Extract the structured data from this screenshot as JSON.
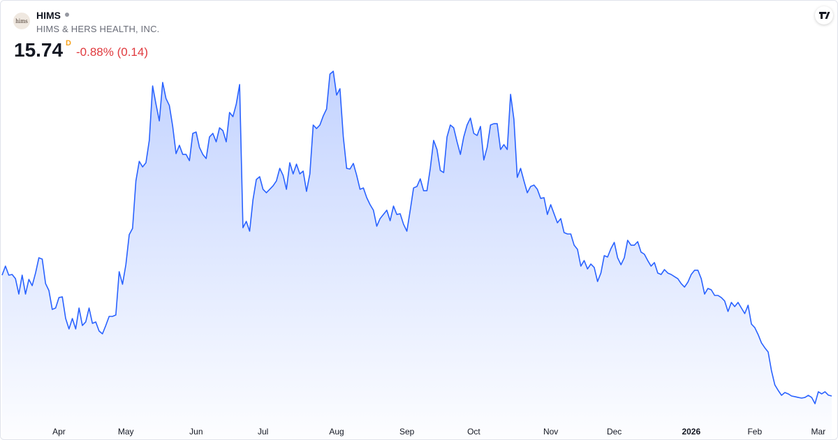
{
  "header": {
    "logo_text": "hims",
    "symbol": "HIMS",
    "company": "HIMS & HERS HEALTH, INC.",
    "price": "15.74",
    "interval": "D",
    "change": "-0.88% (0.14)"
  },
  "chart_data": {
    "type": "area",
    "color": "#2962ff",
    "values": [
      35.24,
      36.7,
      35.24,
      35.35,
      34.67,
      32.19,
      35.24,
      32.19,
      34.56,
      33.55,
      35.58,
      38.05,
      37.83,
      33.88,
      32.76,
      29.71,
      29.94,
      31.63,
      31.74,
      28.25,
      26.56,
      28.25,
      26.56,
      29.94,
      27.12,
      27.69,
      29.94,
      27.46,
      27.69,
      26.22,
      25.77,
      27.12,
      28.59,
      28.59,
      28.81,
      35.8,
      33.77,
      36.93,
      41.77,
      42.79,
      50.45,
      53.61,
      52.71,
      53.38,
      56.99,
      65.78,
      62.85,
      60.14,
      66.34,
      63.75,
      62.62,
      59.24,
      54.85,
      56.2,
      54.73,
      54.73,
      53.72,
      58.12,
      58.34,
      55.86,
      54.73,
      54.06,
      57.55,
      58.12,
      56.76,
      59.02,
      58.57,
      56.76,
      61.5,
      60.82,
      62.85,
      66.0,
      42.9,
      43.92,
      42.34,
      47.41,
      50.68,
      51.13,
      49.1,
      48.54,
      49.1,
      49.66,
      50.45,
      52.48,
      51.35,
      49.1,
      53.38,
      51.58,
      53.16,
      51.58,
      52.03,
      48.76,
      51.58,
      59.47,
      58.9,
      59.47,
      60.93,
      62.06,
      67.69,
      68.15,
      64.31,
      65.33,
      57.55,
      52.48,
      52.37,
      53.27,
      51.35,
      49.1,
      49.32,
      47.75,
      46.62,
      45.72,
      43.13,
      44.37,
      45.04,
      45.72,
      44.03,
      46.39,
      45.04,
      45.15,
      43.46,
      42.34,
      45.72,
      49.32,
      49.55,
      50.79,
      48.87,
      48.87,
      52.48,
      56.99,
      55.52,
      52.14,
      51.8,
      57.55,
      59.47,
      59.02,
      56.76,
      54.73,
      57.55,
      59.47,
      60.59,
      58.12,
      57.78,
      59.24,
      53.83,
      55.86,
      59.47,
      59.69,
      59.69,
      55.52,
      56.31,
      55.52,
      64.43,
      60.37,
      51.02,
      52.48,
      50.45,
      48.54,
      49.55,
      49.78,
      49.1,
      47.63,
      47.75,
      45.04,
      46.62,
      45.15,
      43.69,
      44.37,
      42.11,
      41.89,
      41.89,
      40.08,
      39.41,
      36.7,
      37.6,
      36.25,
      37.04,
      36.48,
      34.22,
      35.58,
      38.39,
      38.17,
      39.52,
      40.53,
      38.05,
      36.93,
      38.05,
      40.87,
      40.08,
      40.08,
      40.65,
      38.96,
      38.62,
      37.6,
      36.7,
      37.27,
      35.58,
      35.35,
      36.14,
      35.58,
      35.35,
      35.01,
      34.67,
      33.88,
      33.32,
      34.11,
      35.35,
      36.03,
      36.03,
      34.67,
      32.19,
      33.1,
      32.87,
      31.97,
      31.97,
      31.63,
      31.07,
      29.38,
      30.84,
      30.17,
      30.84,
      29.94,
      29.04,
      30.39,
      27.35,
      26.78,
      25.66,
      24.31,
      23.52,
      22.84,
      19.8,
      17.54,
      16.64,
      15.85,
      16.3,
      16.08,
      15.74,
      15.63,
      15.51,
      15.4,
      15.51,
      15.85,
      15.51,
      14.5,
      16.42,
      16.08,
      16.42,
      15.88,
      15.74
    ],
    "xticks": [
      {
        "value": 17,
        "label": "Apr"
      },
      {
        "value": 37,
        "label": "May"
      },
      {
        "value": 58,
        "label": "Jun"
      },
      {
        "value": 78,
        "label": "Jul"
      },
      {
        "value": 100,
        "label": "Aug"
      },
      {
        "value": 121,
        "label": "Sep"
      },
      {
        "value": 141,
        "label": "Oct"
      },
      {
        "value": 164,
        "label": "Nov"
      },
      {
        "value": 183,
        "label": "Dec"
      },
      {
        "value": 206,
        "label": "2026"
      },
      {
        "value": 225,
        "label": "Feb"
      },
      {
        "value": 244,
        "label": "Mar"
      }
    ]
  }
}
